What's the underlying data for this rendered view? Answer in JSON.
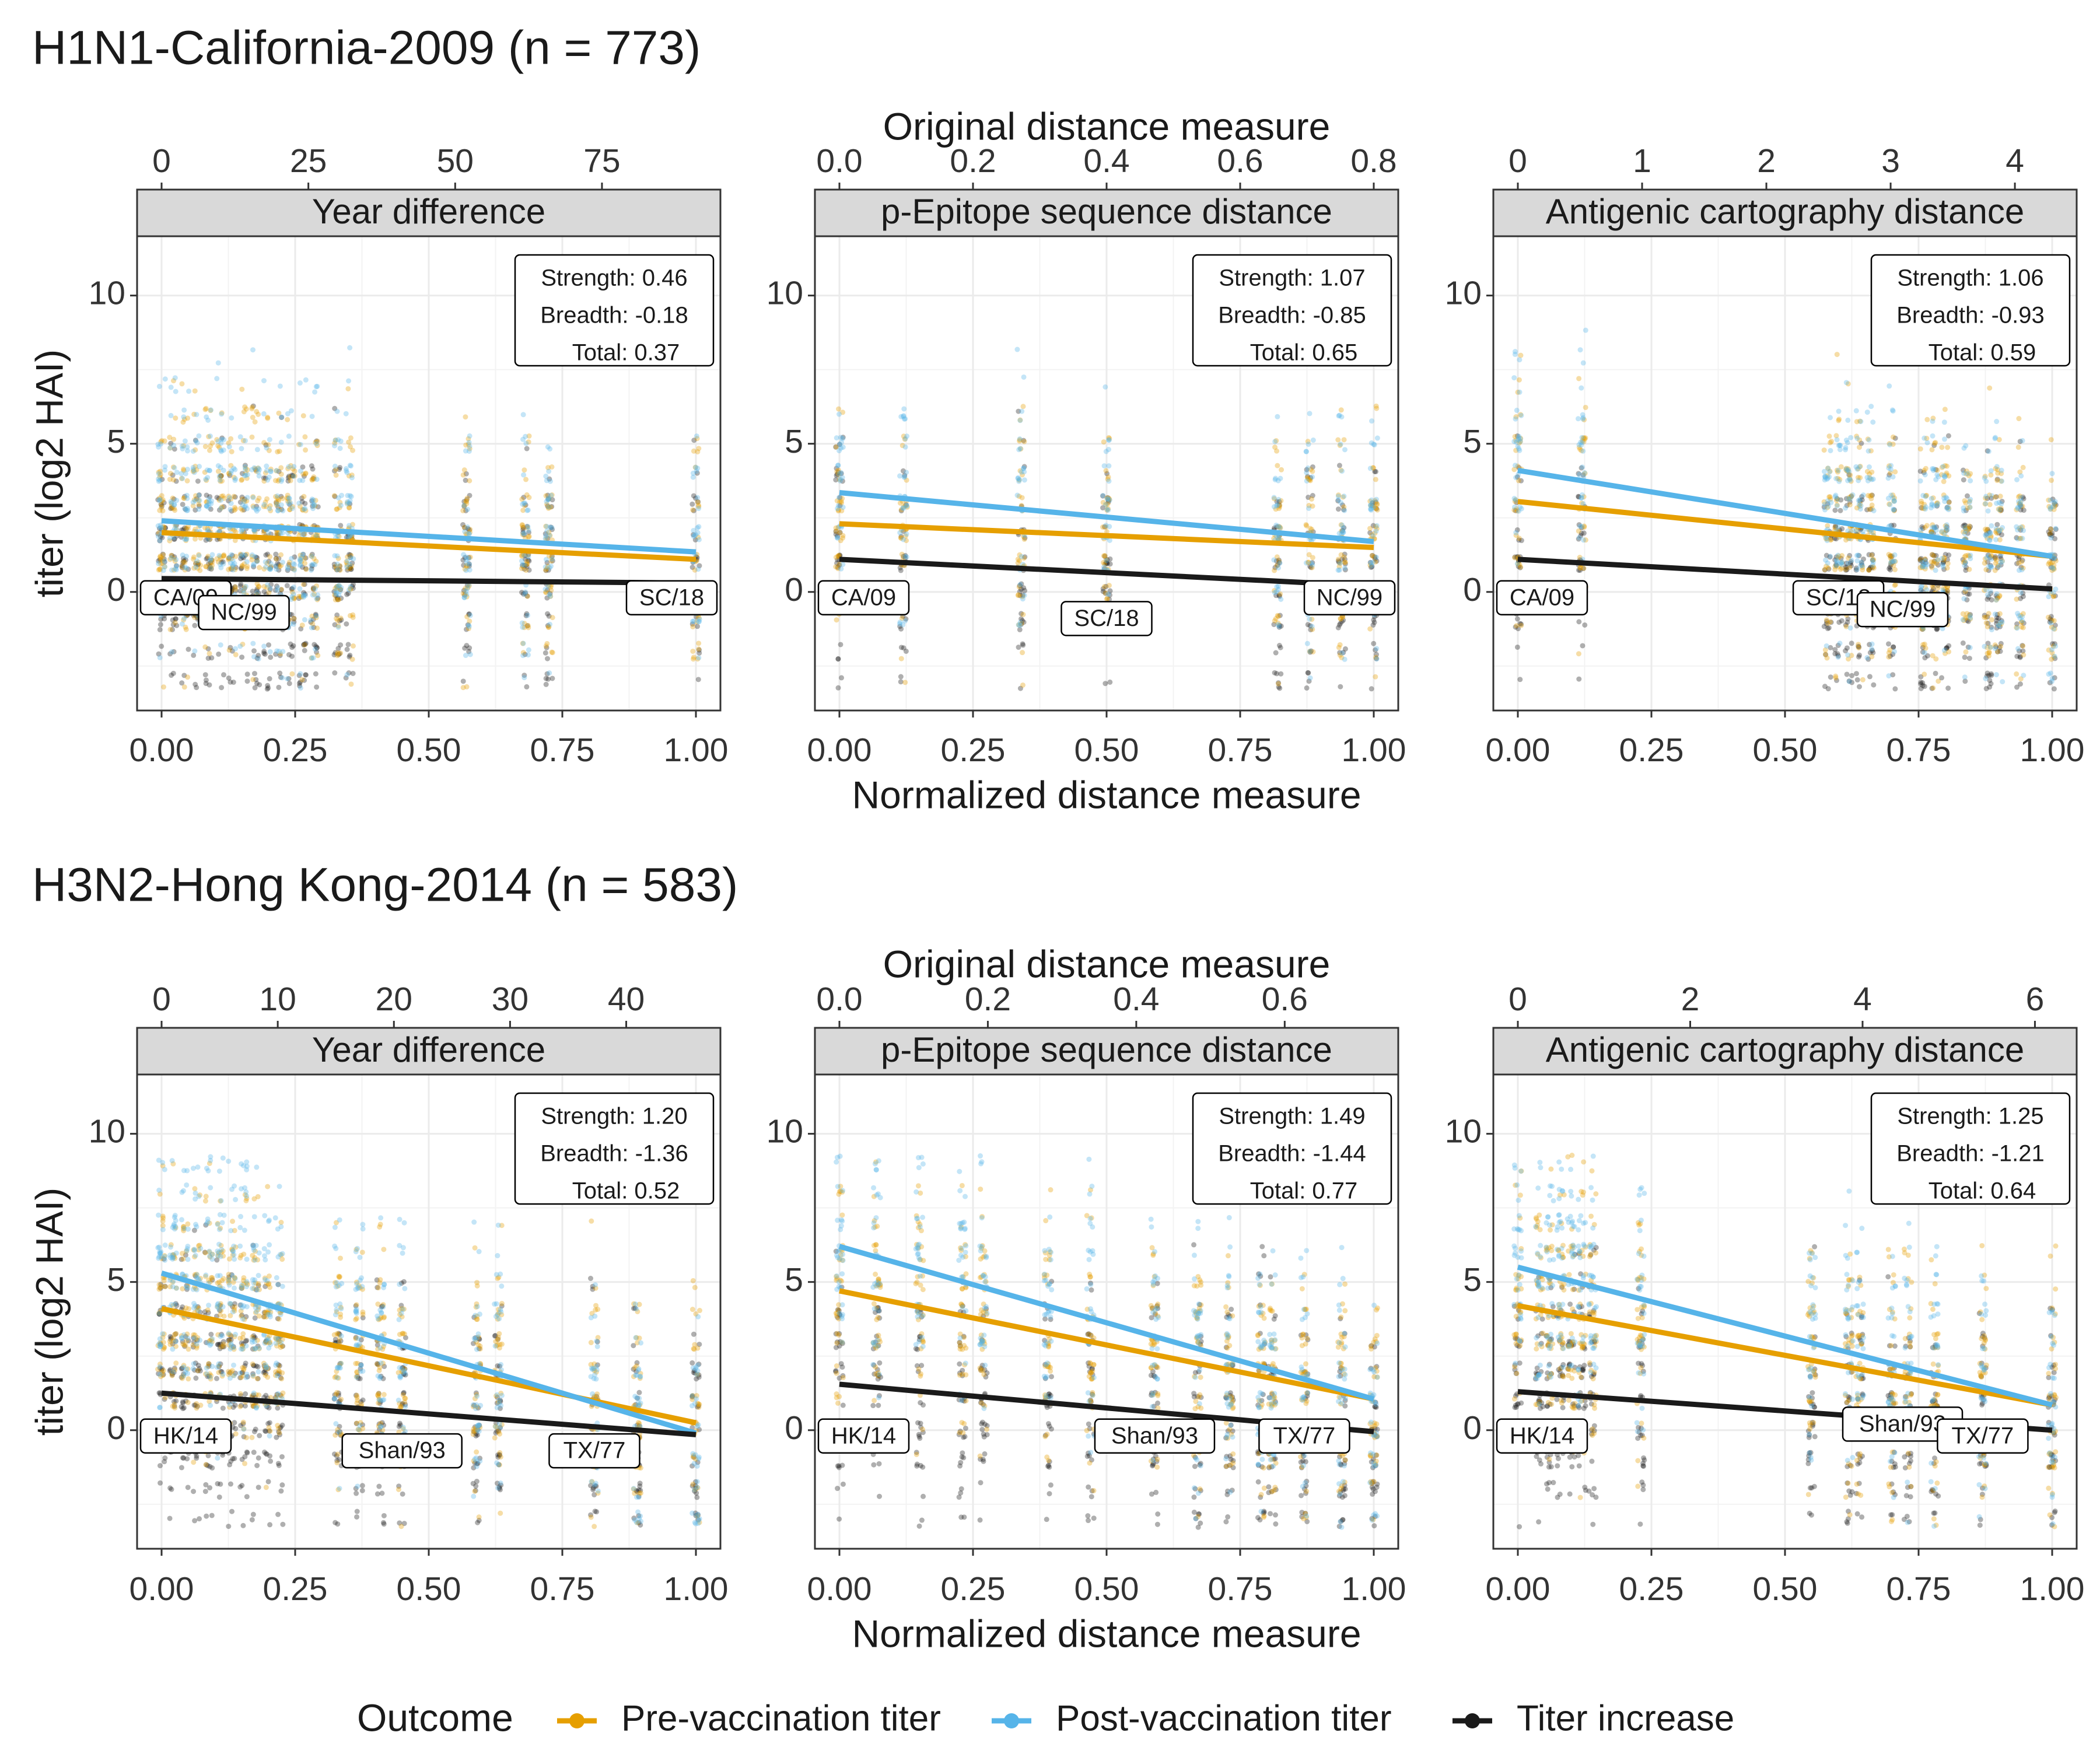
{
  "colors": {
    "pre": "#E69F00",
    "post": "#56B4E9",
    "increase": "#1a1a1a",
    "strip_bg": "#d9d9d9",
    "grid": "#ebebeb"
  },
  "legend": {
    "title": "Outcome",
    "items": [
      {
        "key": "pre",
        "label": "Pre-vaccination titer"
      },
      {
        "key": "post",
        "label": "Post-vaccination titer"
      },
      {
        "key": "increase",
        "label": "Titer increase"
      }
    ]
  },
  "axes": {
    "y_label": "titer (log2 HAI)",
    "y_ticks": [
      0,
      5,
      10
    ],
    "y_range": [
      -4,
      12
    ],
    "x_bottom_label": "Normalized distance measure",
    "x_top_label": "Original distance measure",
    "x_bottom_ticks": [
      "0.00",
      "0.25",
      "0.50",
      "0.75",
      "1.00"
    ]
  },
  "chart_data": [
    {
      "title": "H1N1-California-2009 (n = 773)",
      "panels": [
        {
          "strip": "Year difference",
          "top_ticks": [
            0,
            25,
            50,
            75
          ],
          "top_max": 91,
          "stats": [
            "Strength: 0.46",
            "Breadth: -0.18",
            "Total: 0.37"
          ],
          "lines": {
            "pre": [
              2.0,
              1.1
            ],
            "post": [
              2.4,
              1.35
            ],
            "increase": [
              0.45,
              0.3
            ]
          },
          "x_positions": [
            0,
            0.022,
            0.044,
            0.066,
            0.088,
            0.11,
            0.132,
            0.154,
            0.176,
            0.198,
            0.22,
            0.242,
            0.264,
            0.286,
            0.33,
            0.352,
            0.571,
            0.681,
            0.725,
            1.0
          ],
          "labels": [
            {
              "text": "CA/09",
              "x": 0.0,
              "y": 0.0
            },
            {
              "text": "NC/99",
              "x": 0.154,
              "y": -0.5
            },
            {
              "text": "SC/18",
              "x": 1.0,
              "y": 0.0
            }
          ]
        },
        {
          "strip": "p-Epitope sequence distance",
          "top_ticks": [
            0.0,
            0.2,
            0.4,
            0.6,
            0.8
          ],
          "top_max": 0.8,
          "stats": [
            "Strength: 1.07",
            "Breadth: -0.85",
            "Total: 0.65"
          ],
          "lines": {
            "pre": [
              2.3,
              1.5
            ],
            "post": [
              3.35,
              1.7
            ],
            "increase": [
              1.1,
              0.2
            ]
          },
          "x_positions": [
            0,
            0.12,
            0.34,
            0.5,
            0.82,
            0.88,
            0.94,
            1.0
          ],
          "labels": [
            {
              "text": "CA/09",
              "x": 0.0,
              "y": 0.0
            },
            {
              "text": "SC/18",
              "x": 0.5,
              "y": -0.7
            },
            {
              "text": "NC/99",
              "x": 1.0,
              "y": 0.0
            }
          ]
        },
        {
          "strip": "Antigenic cartography distance",
          "top_ticks": [
            0,
            1,
            2,
            3,
            4
          ],
          "top_max": 4.3,
          "stats": [
            "Strength: 1.06",
            "Breadth: -0.93",
            "Total: 0.59"
          ],
          "lines": {
            "pre": [
              3.05,
              1.2
            ],
            "post": [
              4.1,
              1.2
            ],
            "increase": [
              1.1,
              0.1
            ]
          },
          "x_positions": [
            0,
            0.12,
            0.58,
            0.6,
            0.62,
            0.64,
            0.66,
            0.7,
            0.76,
            0.78,
            0.8,
            0.84,
            0.88,
            0.9,
            0.94,
            1.0
          ],
          "labels": [
            {
              "text": "CA/09",
              "x": 0.0,
              "y": 0.0
            },
            {
              "text": "SC/18",
              "x": 0.6,
              "y": 0.0
            },
            {
              "text": "NC/99",
              "x": 0.72,
              "y": -0.4
            }
          ]
        }
      ]
    },
    {
      "title": "H3N2-Hong Kong-2014 (n = 583)",
      "panels": [
        {
          "strip": "Year difference",
          "top_ticks": [
            0,
            10,
            20,
            30,
            40
          ],
          "top_max": 46,
          "stats": [
            "Strength: 1.20",
            "Breadth: -1.36",
            "Total: 0.52"
          ],
          "lines": {
            "pre": [
              4.1,
              0.25
            ],
            "post": [
              5.3,
              -0.1
            ],
            "increase": [
              1.25,
              -0.15
            ]
          },
          "x_positions": [
            0,
            0.022,
            0.044,
            0.066,
            0.088,
            0.11,
            0.132,
            0.154,
            0.176,
            0.198,
            0.22,
            0.33,
            0.37,
            0.41,
            0.45,
            0.59,
            0.63,
            0.81,
            0.89,
            1.0
          ],
          "labels": [
            {
              "text": "HK/14",
              "x": 0.0,
              "y": 0.0
            },
            {
              "text": "Shan/93",
              "x": 0.45,
              "y": -0.5
            },
            {
              "text": "TX/77",
              "x": 0.81,
              "y": -0.5
            }
          ]
        },
        {
          "strip": "p-Epitope sequence distance",
          "top_ticks": [
            0.0,
            0.2,
            0.4,
            0.6
          ],
          "top_max": 0.72,
          "stats": [
            "Strength: 1.49",
            "Breadth: -1.44",
            "Total: 0.77"
          ],
          "lines": {
            "pre": [
              4.7,
              1.05
            ],
            "post": [
              6.2,
              1.05
            ],
            "increase": [
              1.55,
              -0.05
            ]
          },
          "x_positions": [
            0,
            0.07,
            0.15,
            0.23,
            0.27,
            0.39,
            0.47,
            0.59,
            0.67,
            0.73,
            0.79,
            0.81,
            0.87,
            0.94,
            1.0
          ],
          "labels": [
            {
              "text": "HK/14",
              "x": 0.0,
              "y": 0.0
            },
            {
              "text": "Shan/93",
              "x": 0.59,
              "y": 0.0
            },
            {
              "text": "TX/77",
              "x": 0.87,
              "y": 0.0
            }
          ]
        },
        {
          "strip": "Antigenic cartography distance",
          "top_ticks": [
            0,
            2,
            4,
            6
          ],
          "top_max": 6.2,
          "stats": [
            "Strength: 1.25",
            "Breadth: -1.21",
            "Total: 0.64"
          ],
          "lines": {
            "pre": [
              4.2,
              0.85
            ],
            "post": [
              5.5,
              0.85
            ],
            "increase": [
              1.3,
              0.0
            ]
          },
          "x_positions": [
            0,
            0.04,
            0.06,
            0.08,
            0.1,
            0.12,
            0.14,
            0.23,
            0.55,
            0.62,
            0.64,
            0.7,
            0.73,
            0.78,
            0.87,
            1.0
          ],
          "labels": [
            {
              "text": "HK/14",
              "x": 0.0,
              "y": 0.0
            },
            {
              "text": "Shan/93",
              "x": 0.72,
              "y": 0.4
            },
            {
              "text": "TX/77",
              "x": 0.87,
              "y": 0.0
            }
          ]
        }
      ]
    }
  ]
}
